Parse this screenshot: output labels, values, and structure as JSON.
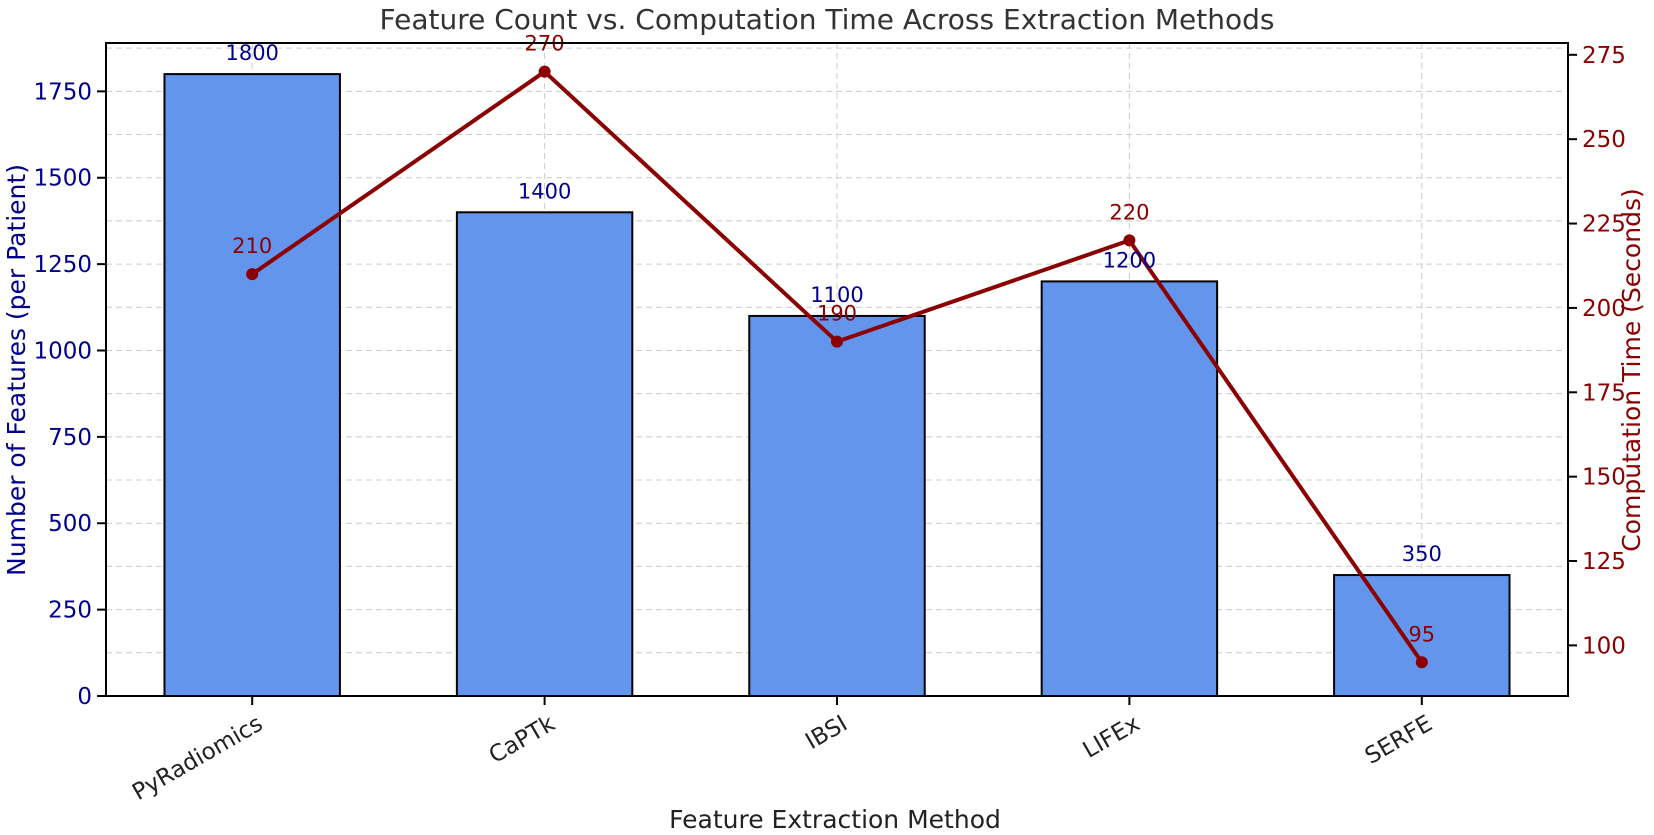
{
  "chart_data": {
    "type": "bar",
    "title": "Feature Count vs. Computation Time Across Extraction Methods",
    "xlabel": "Feature Extraction Method",
    "ylabel": "Number of Features (per Patient)",
    "y2label": "Computation Time (Seconds)",
    "categories": [
      "PyRadiomics",
      "CaPTk",
      "IBSI",
      "LIFEx",
      "SERFE"
    ],
    "ylim": [
      0,
      1890
    ],
    "y2lim": [
      85,
      278.5
    ],
    "yticks": [
      "0",
      "250",
      "500",
      "750",
      "1000",
      "1250",
      "1500",
      "1750"
    ],
    "y2ticks": [
      "100",
      "125",
      "150",
      "175",
      "200",
      "225",
      "250",
      "275"
    ],
    "grid": true,
    "series": [
      {
        "name": "Number of Features (per Patient)",
        "kind": "bar",
        "axis": "left",
        "values": [
          1800,
          1400,
          1100,
          1200,
          350
        ],
        "labels": [
          "1800",
          "1400",
          "1100",
          "1200",
          "350"
        ]
      },
      {
        "name": "Computation Time (Seconds)",
        "kind": "line",
        "axis": "right",
        "values": [
          210,
          270,
          190,
          220,
          95
        ],
        "labels": [
          "210",
          "270",
          "190",
          "220",
          "95"
        ]
      }
    ],
    "colors": {
      "bar_fill": "#6495ED",
      "bar_edge": "#000000",
      "line": "#8B0000",
      "left_axis_text": "#00008B",
      "right_axis_text": "#8B0000",
      "title_text": "#333333",
      "grid": "#cccccc"
    }
  }
}
